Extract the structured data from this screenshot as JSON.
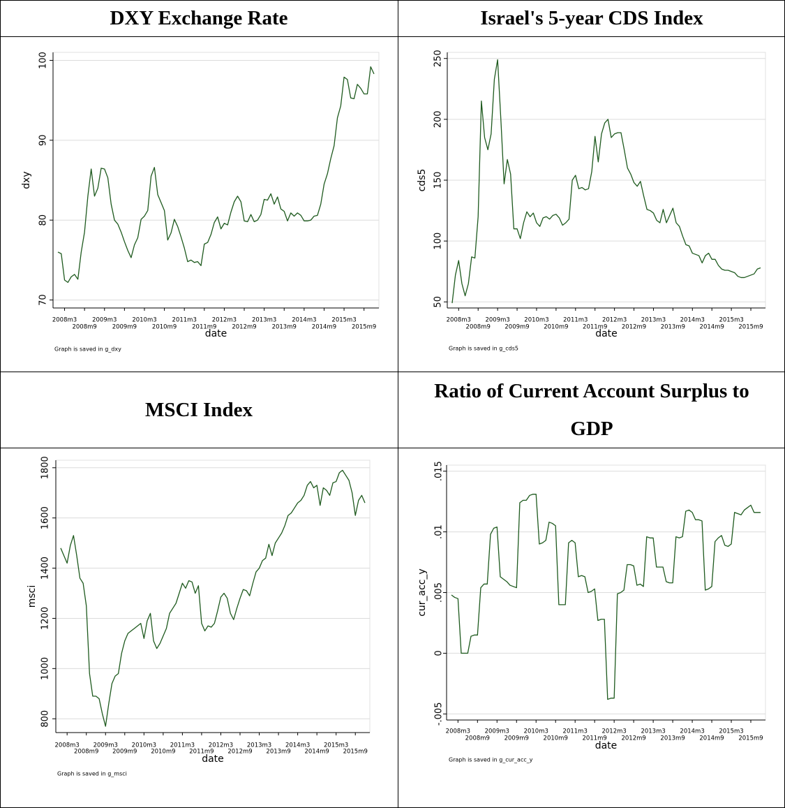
{
  "chart_data": [
    {
      "type": "line",
      "title": "DXY Exchange Rate",
      "ylabel": "dxy",
      "xlabel": "date",
      "note": "Graph is saved in g_dxy",
      "color": "#1e5a1e",
      "grid": true,
      "categories": [
        null,
        null,
        "2008m3",
        null,
        null,
        null,
        null,
        null,
        "2008m9",
        null,
        null,
        null,
        null,
        null,
        "2009m3",
        null,
        null,
        null,
        null,
        null,
        "2009m9",
        null,
        null,
        null,
        null,
        null,
        "2010m3",
        null,
        null,
        null,
        null,
        null,
        "2010m9",
        null,
        null,
        null,
        null,
        null,
        "2011m3",
        null,
        null,
        null,
        null,
        null,
        "2011m9",
        null,
        null,
        null,
        null,
        null,
        "2012m3",
        null,
        null,
        null,
        null,
        null,
        "2012m9",
        null,
        null,
        null,
        null,
        null,
        "2013m3",
        null,
        null,
        null,
        null,
        null,
        "2013m9",
        null,
        null,
        null,
        null,
        null,
        "2014m3",
        null,
        null,
        null,
        null,
        null,
        "2014m9",
        null,
        null,
        null,
        null,
        null,
        "2015m3",
        null,
        null,
        null,
        null,
        null,
        "2015m9",
        null,
        null,
        null
      ],
      "values": [
        76.0,
        75.8,
        72.5,
        72.2,
        72.9,
        73.2,
        72.6,
        76.0,
        78.5,
        83.0,
        86.4,
        83.0,
        84.0,
        86.5,
        86.4,
        85.3,
        82.0,
        80.0,
        79.5,
        78.5,
        77.3,
        76.2,
        75.3,
        76.9,
        77.8,
        80.1,
        80.5,
        81.2,
        85.5,
        86.6,
        83.2,
        82.2,
        81.2,
        77.5,
        78.4,
        80.1,
        79.2,
        77.9,
        76.5,
        74.8,
        75.0,
        74.7,
        74.8,
        74.3,
        77.0,
        77.2,
        78.2,
        79.7,
        80.4,
        78.9,
        79.6,
        79.4,
        81.0,
        82.3,
        83.0,
        82.3,
        79.9,
        79.8,
        80.7,
        79.8,
        80.0,
        80.7,
        82.6,
        82.5,
        83.3,
        82.0,
        82.9,
        81.4,
        81.1,
        79.9,
        80.9,
        80.5,
        80.9,
        80.6,
        79.9,
        79.9,
        80.0,
        80.5,
        80.6,
        82.0,
        84.5,
        85.8,
        87.7,
        89.3,
        92.8,
        94.3,
        97.9,
        97.6,
        95.3,
        95.2,
        97.0,
        96.5,
        95.8,
        95.8,
        99.2,
        98.3
      ],
      "ylim": [
        69,
        101
      ],
      "yticks": [
        70,
        80,
        90,
        100
      ]
    },
    {
      "type": "line",
      "title": "Israel's 5-year CDS Index",
      "ylabel": "cds5",
      "xlabel": "date",
      "note": "Graph is saved in g_cds5",
      "color": "#1e5a1e",
      "grid": true,
      "categories": [
        null,
        null,
        "2008m3",
        null,
        null,
        null,
        null,
        null,
        "2008m9",
        null,
        null,
        null,
        null,
        null,
        "2009m3",
        null,
        null,
        null,
        null,
        null,
        "2009m9",
        null,
        null,
        null,
        null,
        null,
        "2010m3",
        null,
        null,
        null,
        null,
        null,
        "2010m9",
        null,
        null,
        null,
        null,
        null,
        "2011m3",
        null,
        null,
        null,
        null,
        null,
        "2011m9",
        null,
        null,
        null,
        null,
        null,
        "2012m3",
        null,
        null,
        null,
        null,
        null,
        "2012m9",
        null,
        null,
        null,
        null,
        null,
        "2013m3",
        null,
        null,
        null,
        null,
        null,
        "2013m9",
        null,
        null,
        null,
        null,
        null,
        "2014m3",
        null,
        null,
        null,
        null,
        null,
        "2014m9",
        null,
        null,
        null,
        null,
        null,
        "2015m3",
        null,
        null,
        null,
        null,
        null,
        "2015m9",
        null,
        null,
        null
      ],
      "values": [
        49,
        72,
        84,
        65,
        55,
        65,
        87,
        86,
        120,
        215,
        185,
        175,
        188,
        233,
        249,
        200,
        147,
        167,
        155,
        110,
        110,
        102,
        115,
        124,
        120,
        123,
        115,
        112,
        119,
        120,
        118,
        121,
        122,
        119,
        113,
        115,
        118,
        150,
        154,
        143,
        144,
        142,
        143,
        157,
        186,
        165,
        188,
        197,
        200,
        185,
        188,
        189,
        189,
        175,
        160,
        155,
        148,
        145,
        149,
        137,
        126,
        125,
        123,
        117,
        115,
        126,
        115,
        121,
        127,
        115,
        112,
        104,
        97,
        96,
        90,
        89,
        88,
        82,
        88,
        90,
        85,
        85,
        80,
        77,
        76,
        76,
        75,
        74,
        71,
        70,
        70,
        71,
        72,
        73,
        77,
        78
      ],
      "ylim": [
        45,
        255
      ],
      "yticks": [
        50,
        100,
        150,
        200,
        250
      ]
    },
    {
      "type": "line",
      "title": "MSCI Index",
      "ylabel": "msci",
      "xlabel": "date",
      "note": "Graph is saved in g_msci",
      "color": "#1e5a1e",
      "grid": true,
      "categories": [
        null,
        null,
        "2008m3",
        null,
        null,
        null,
        null,
        null,
        "2008m9",
        null,
        null,
        null,
        null,
        null,
        "2009m3",
        null,
        null,
        null,
        null,
        null,
        "2009m9",
        null,
        null,
        null,
        null,
        null,
        "2010m3",
        null,
        null,
        null,
        null,
        null,
        "2010m9",
        null,
        null,
        null,
        null,
        null,
        "2011m3",
        null,
        null,
        null,
        null,
        null,
        "2011m9",
        null,
        null,
        null,
        null,
        null,
        "2012m3",
        null,
        null,
        null,
        null,
        null,
        "2012m9",
        null,
        null,
        null,
        null,
        null,
        "2013m3",
        null,
        null,
        null,
        null,
        null,
        "2013m9",
        null,
        null,
        null,
        null,
        null,
        "2014m3",
        null,
        null,
        null,
        null,
        null,
        "2014m9",
        null,
        null,
        null,
        null,
        null,
        "2015m3",
        null,
        null,
        null,
        null,
        null,
        "2015m9",
        null,
        null,
        null
      ],
      "values": [
        1480,
        1450,
        1420,
        1490,
        1530,
        1450,
        1360,
        1340,
        1250,
        980,
        890,
        890,
        880,
        820,
        770,
        860,
        940,
        970,
        980,
        1060,
        1110,
        1140,
        1150,
        1160,
        1170,
        1180,
        1120,
        1190,
        1220,
        1110,
        1080,
        1100,
        1130,
        1160,
        1220,
        1240,
        1260,
        1300,
        1340,
        1320,
        1350,
        1345,
        1300,
        1330,
        1180,
        1150,
        1170,
        1165,
        1180,
        1230,
        1285,
        1300,
        1280,
        1220,
        1195,
        1240,
        1280,
        1315,
        1310,
        1290,
        1340,
        1385,
        1400,
        1430,
        1440,
        1495,
        1450,
        1500,
        1520,
        1540,
        1570,
        1610,
        1620,
        1640,
        1660,
        1670,
        1690,
        1730,
        1745,
        1720,
        1730,
        1650,
        1720,
        1710,
        1690,
        1740,
        1745,
        1780,
        1790,
        1770,
        1750,
        1700,
        1610,
        1670,
        1690,
        1660
      ],
      "ylim": [
        745,
        1830
      ],
      "yticks": [
        800,
        1000,
        1200,
        1400,
        1600,
        1800
      ]
    },
    {
      "type": "line",
      "title": "Ratio of Current Account Surplus to GDP",
      "ylabel": "cur_acc_y",
      "xlabel": "date",
      "note": "Graph is saved in g_cur_acc_y",
      "color": "#1e5a1e",
      "grid": true,
      "categories": [
        null,
        null,
        "2008m3",
        null,
        null,
        null,
        null,
        null,
        "2008m9",
        null,
        null,
        null,
        null,
        null,
        "2009m3",
        null,
        null,
        null,
        null,
        null,
        "2009m9",
        null,
        null,
        null,
        null,
        null,
        "2010m3",
        null,
        null,
        null,
        null,
        null,
        "2010m9",
        null,
        null,
        null,
        null,
        null,
        "2011m3",
        null,
        null,
        null,
        null,
        null,
        "2011m9",
        null,
        null,
        null,
        null,
        null,
        "2012m3",
        null,
        null,
        null,
        null,
        null,
        "2012m9",
        null,
        null,
        null,
        null,
        null,
        "2013m3",
        null,
        null,
        null,
        null,
        null,
        "2013m9",
        null,
        null,
        null,
        null,
        null,
        "2014m3",
        null,
        null,
        null,
        null,
        null,
        "2014m9",
        null,
        null,
        null,
        null,
        null,
        "2015m3",
        null,
        null,
        null,
        null,
        null,
        "2015m9",
        null,
        null,
        null
      ],
      "values": [
        0.0048,
        0.0046,
        0.0045,
        0.0,
        0.0,
        0.0,
        0.0014,
        0.0015,
        0.0015,
        0.0054,
        0.0057,
        0.0057,
        0.0098,
        0.0103,
        0.0104,
        0.0063,
        0.0061,
        0.0059,
        0.0056,
        0.0055,
        0.0054,
        0.0124,
        0.0126,
        0.0126,
        0.013,
        0.0131,
        0.0131,
        0.009,
        0.0091,
        0.0093,
        0.0108,
        0.0107,
        0.0105,
        0.004,
        0.004,
        0.004,
        0.0091,
        0.0093,
        0.0091,
        0.0063,
        0.0064,
        0.0063,
        0.005,
        0.0051,
        0.0053,
        0.0027,
        0.0028,
        0.0028,
        -0.0038,
        -0.0037,
        -0.0037,
        0.0049,
        0.005,
        0.0052,
        0.0073,
        0.0073,
        0.0072,
        0.0056,
        0.0057,
        0.0055,
        0.0096,
        0.0095,
        0.0095,
        0.0071,
        0.0071,
        0.0071,
        0.0059,
        0.0058,
        0.0058,
        0.0096,
        0.0095,
        0.0096,
        0.0117,
        0.0118,
        0.0116,
        0.011,
        0.011,
        0.0109,
        0.0052,
        0.0053,
        0.0055,
        0.0092,
        0.0095,
        0.0097,
        0.0089,
        0.0088,
        0.009,
        0.0116,
        0.0115,
        0.0114,
        0.0118,
        0.012,
        0.0122,
        0.0116,
        0.0116,
        0.0116
      ],
      "ylim": [
        -0.0055,
        0.0155
      ],
      "yticks": [
        {
          "value": -0.005,
          "label": "-.005"
        },
        0,
        {
          "value": 0.005,
          "label": ".005"
        },
        {
          "value": 0.01,
          "label": ".01"
        },
        {
          "value": 0.015,
          "label": ".015"
        }
      ]
    }
  ]
}
